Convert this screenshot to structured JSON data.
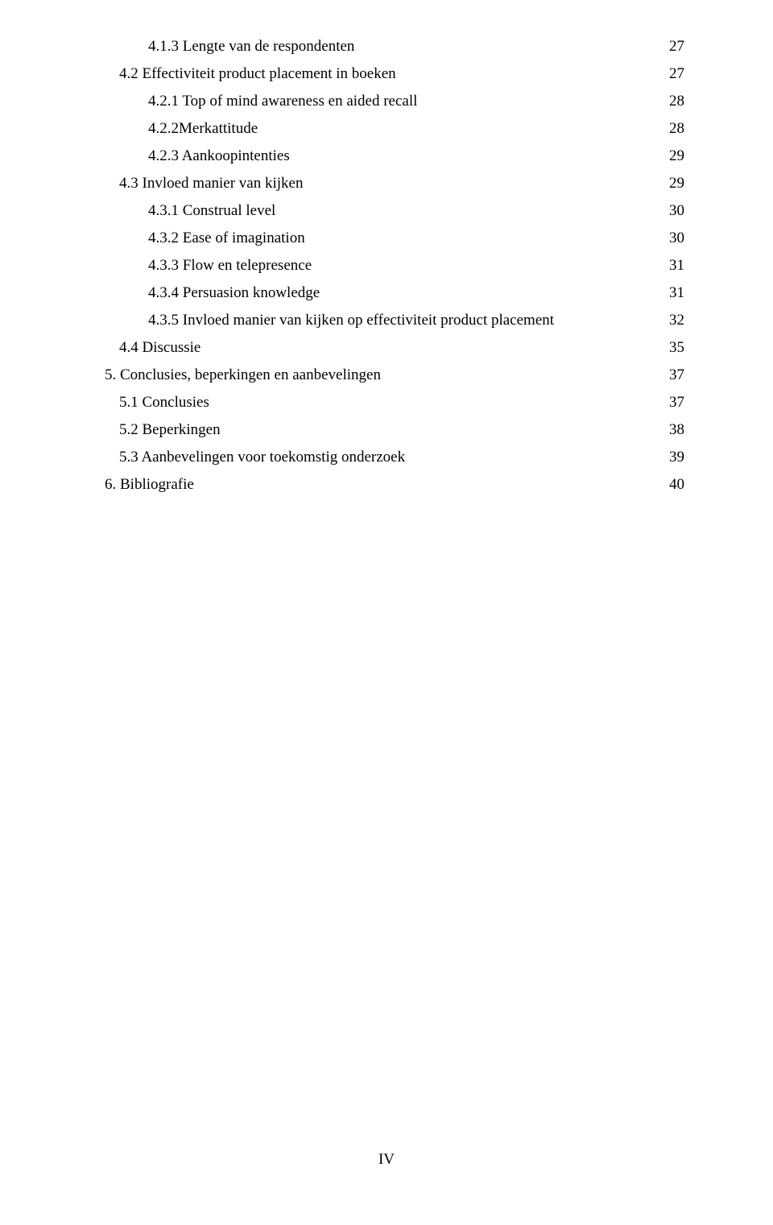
{
  "toc": {
    "entries": [
      {
        "level": 3,
        "label": "4.1.3 Lengte van de respondenten",
        "page": "27"
      },
      {
        "level": 2,
        "label": "4.2 Effectiviteit product placement in boeken",
        "page": "27"
      },
      {
        "level": 3,
        "label": "4.2.1 Top of mind awareness en aided recall",
        "page": "28"
      },
      {
        "level": 3,
        "label": "4.2.2Merkattitude",
        "page": "28"
      },
      {
        "level": 3,
        "label": "4.2.3 Aankoopintenties",
        "page": "29"
      },
      {
        "level": 2,
        "label": "4.3 Invloed manier van kijken",
        "page": "29"
      },
      {
        "level": 3,
        "label": "4.3.1 Construal level",
        "page": "30"
      },
      {
        "level": 3,
        "label": "4.3.2 Ease of imagination",
        "page": "30"
      },
      {
        "level": 3,
        "label": "4.3.3 Flow en telepresence",
        "page": "31"
      },
      {
        "level": 3,
        "label": "4.3.4 Persuasion knowledge",
        "page": "31"
      },
      {
        "level": 3,
        "label": "4.3.5 Invloed manier van kijken op effectiviteit product placement",
        "page": "32"
      },
      {
        "level": 2,
        "label": "4.4 Discussie",
        "page": "35"
      },
      {
        "level": 1,
        "label": "5. Conclusies, beperkingen en aanbevelingen",
        "page": "37"
      },
      {
        "level": 2,
        "label": "5.1 Conclusies",
        "page": "37"
      },
      {
        "level": 2,
        "label": "5.2 Beperkingen",
        "page": "38"
      },
      {
        "level": 2,
        "label": "5.3 Aanbevelingen voor toekomstig onderzoek",
        "page": "39"
      },
      {
        "level": 1,
        "label": "6. Bibliografie",
        "page": "40"
      }
    ]
  },
  "footer": {
    "page_marker": "IV"
  },
  "colors": {
    "text": "#000000",
    "background": "#ffffff"
  },
  "typography": {
    "font_family": "Times New Roman",
    "body_fontsize_pt": 14
  }
}
